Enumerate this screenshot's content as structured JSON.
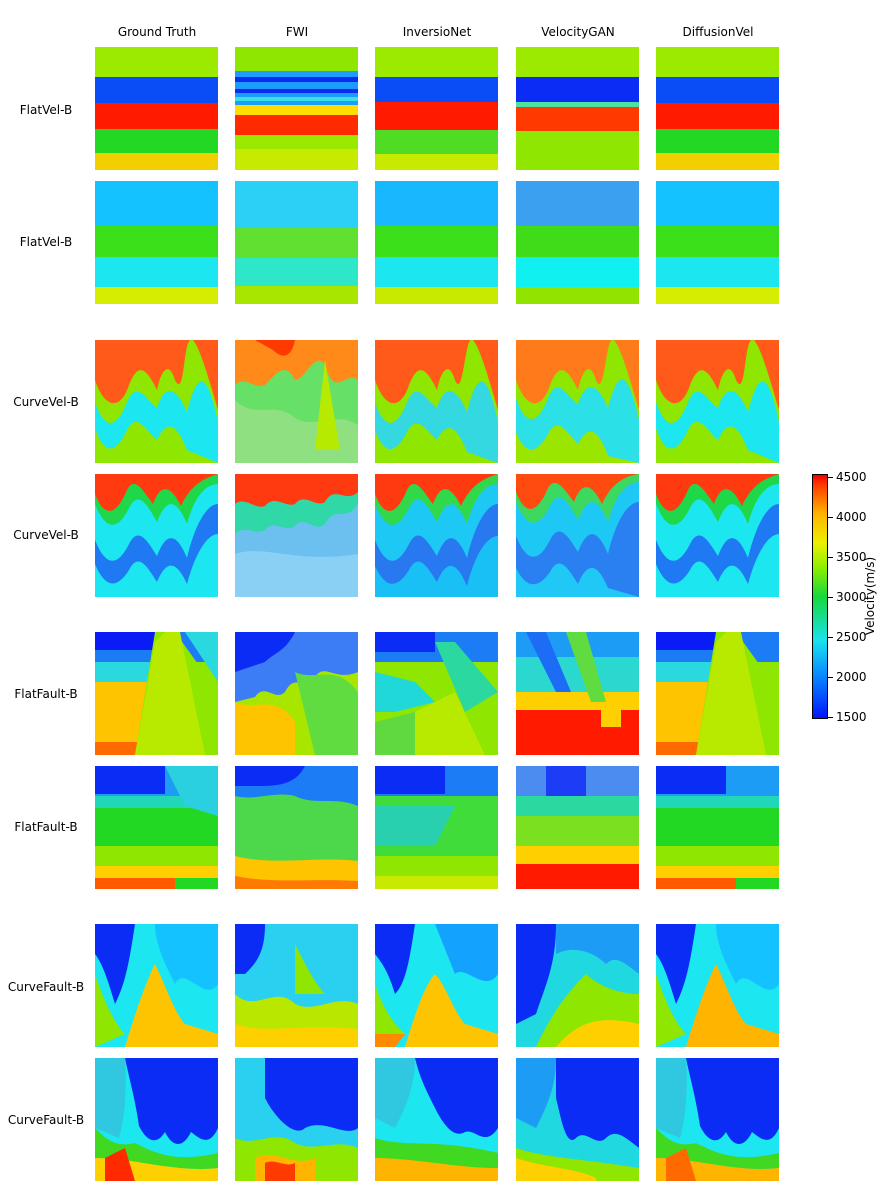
{
  "columns": [
    "Ground Truth",
    "FWI",
    "InversioNet",
    "VelocityGAN",
    "DiffusionVel"
  ],
  "rows": [
    "FlatVel-B",
    "FlatVel-B",
    "CurveVel-B",
    "CurveVel-B",
    "FlatFault-B",
    "FlatFault-B",
    "CurveFault-B",
    "CurveFault-B"
  ],
  "colorbar": {
    "title": "Velocity(m/s)",
    "ticks": [
      "4500",
      "4000",
      "3500",
      "3000",
      "2500",
      "2000",
      "1500"
    ],
    "range": [
      1500,
      4500
    ]
  },
  "colors": {
    "red": "#ff1a00",
    "orange": "#ffa500",
    "yellow": "#f2e600",
    "lime": "#9bea00",
    "green": "#22d822",
    "cyan": "#1ce6ef",
    "lightblue": "#14c2ff",
    "blue": "#1f79f2",
    "darkblue": "#0a1cf5"
  }
}
